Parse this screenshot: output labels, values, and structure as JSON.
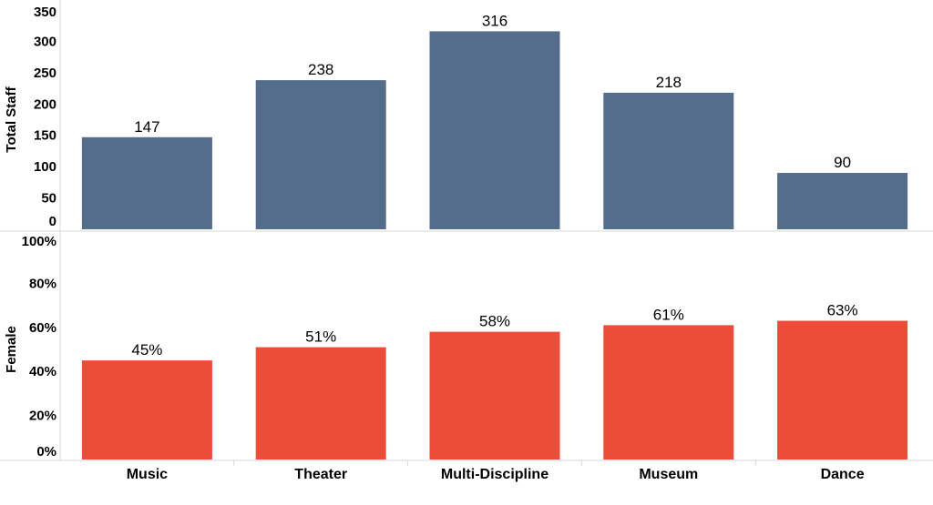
{
  "chart_data": {
    "type": "bar",
    "layout": "stacked-panels",
    "categories": [
      "Music",
      "Theater",
      "Multi-Discipline",
      "Museum",
      "Dance"
    ],
    "panels": [
      {
        "name": "total-staff",
        "ylabel": "Total Staff",
        "values": [
          147,
          238,
          316,
          218,
          90
        ],
        "value_labels": [
          "147",
          "238",
          "316",
          "218",
          "90"
        ],
        "ylim": [
          0,
          350
        ],
        "yticks": [
          0,
          50,
          100,
          150,
          200,
          250,
          300,
          350
        ],
        "ytick_labels": [
          "0",
          "50",
          "100",
          "150",
          "200",
          "250",
          "300",
          "350"
        ],
        "color": "#546d8b"
      },
      {
        "name": "female",
        "ylabel": "Female",
        "values": [
          45,
          51,
          58,
          61,
          63
        ],
        "value_labels": [
          "45%",
          "51%",
          "58%",
          "61%",
          "63%"
        ],
        "ylim": [
          0,
          100
        ],
        "yticks": [
          0,
          20,
          40,
          60,
          80,
          100
        ],
        "ytick_labels": [
          "0%",
          "20%",
          "40%",
          "60%",
          "80%",
          "100%"
        ],
        "color": "#eb4d38"
      }
    ]
  }
}
